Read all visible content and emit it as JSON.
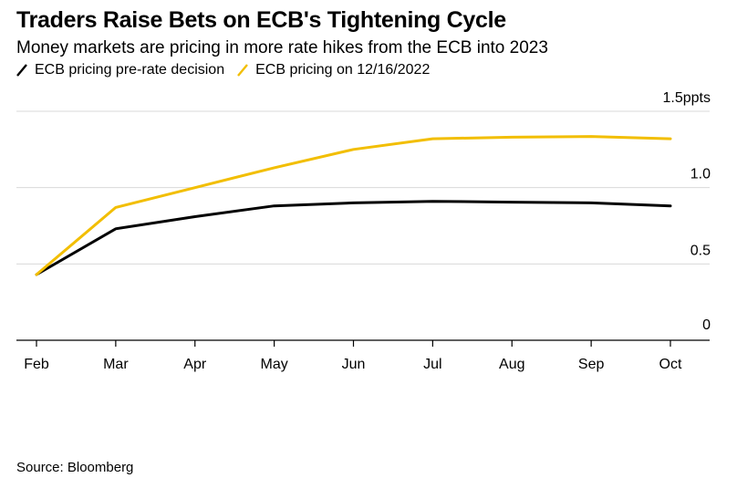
{
  "title": "Traders Raise Bets on ECB's Tightening Cycle",
  "subtitle": "Money markets are pricing in more rate hikes from the ECB into 2023",
  "source": "Source: Bloomberg",
  "colors": {
    "series_black": "#000000",
    "series_yellow": "#f2be00",
    "grid": "#d9d9d9",
    "axis": "#000000"
  },
  "chart_data": {
    "type": "line",
    "title": "Traders Raise Bets on ECB's Tightening Cycle",
    "subtitle": "Money markets are pricing in more rate hikes from the ECB into 2023",
    "x": [
      "Feb",
      "Mar",
      "Apr",
      "May",
      "Jun",
      "Jul",
      "Aug",
      "Sep",
      "Oct"
    ],
    "xlabel": "",
    "ylabel": "",
    "ylim": [
      0,
      1.5
    ],
    "yticks": [
      0,
      0.5,
      1.0,
      1.5
    ],
    "ytick_labels": [
      "0",
      "0.5",
      "1.0",
      "1.5ppts"
    ],
    "grid": true,
    "legend": "top-left",
    "series": [
      {
        "name": "ECB pricing pre-rate decision",
        "color": "#000000",
        "values": [
          0.43,
          0.73,
          0.81,
          0.88,
          0.9,
          0.91,
          0.905,
          0.9,
          0.88
        ]
      },
      {
        "name": "ECB pricing on 12/16/2022",
        "color": "#f2be00",
        "values": [
          0.43,
          0.87,
          1.0,
          1.13,
          1.25,
          1.32,
          1.33,
          1.335,
          1.32
        ]
      }
    ]
  }
}
